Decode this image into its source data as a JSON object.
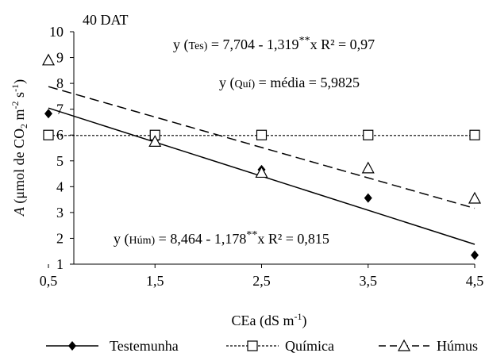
{
  "chart_data": {
    "type": "scatter",
    "title": "40 DAT",
    "xlabel_main": "CEa (dS m",
    "xlabel_sup": "-1",
    "xlabel_close": ")",
    "ylabel_italic": "A",
    "ylabel_text": " (μmol de CO",
    "ylabel_sub": "2",
    "ylabel_mid": " m",
    "ylabel_sup1": "-2",
    "ylabel_s": " s",
    "ylabel_sup2": "-1",
    "ylabel_close": ")",
    "xlim": [
      0.5,
      4.5
    ],
    "ylim": [
      1,
      10
    ],
    "x_ticks": [
      "0,5",
      "1,5",
      "2,5",
      "3,5",
      "4,5"
    ],
    "y_ticks": [
      "1",
      "2",
      "3",
      "4",
      "5",
      "6",
      "7",
      "8",
      "9",
      "10"
    ],
    "x": [
      0.5,
      1.5,
      2.5,
      3.5,
      4.5
    ],
    "series": [
      {
        "name": "Testemunha",
        "marker": "diamond",
        "line": "solid",
        "values": [
          6.83,
          5.8,
          4.66,
          3.56,
          1.35
        ],
        "fit": [
          7.704,
          -1.319
        ]
      },
      {
        "name": "Química",
        "marker": "square",
        "line": "dotted",
        "values": [
          6.0,
          6.0,
          6.0,
          6.0,
          6.0
        ],
        "fit": [
          5.9825,
          0
        ]
      },
      {
        "name": "Húmus",
        "marker": "triangle",
        "line": "dashed",
        "values": [
          8.9,
          5.75,
          4.55,
          4.72,
          3.55
        ],
        "fit": [
          8.464,
          -1.178
        ]
      }
    ],
    "equations": {
      "tes": {
        "lead": "y (",
        "tag": "Tes)",
        "body": " = 7,704 - 1,319",
        "stars": "**",
        "tail": "x R² = 0,97"
      },
      "qui": {
        "lead": "y (",
        "tag": "Quí)",
        "body": " = média = 5,9825"
      },
      "hum": {
        "lead": "y (",
        "tag": "Húm)",
        "body": " = 8,464 - 1,178",
        "stars": "**",
        "tail": "x R² = 0,815"
      }
    },
    "grid": false,
    "legend_position": "bottom"
  }
}
